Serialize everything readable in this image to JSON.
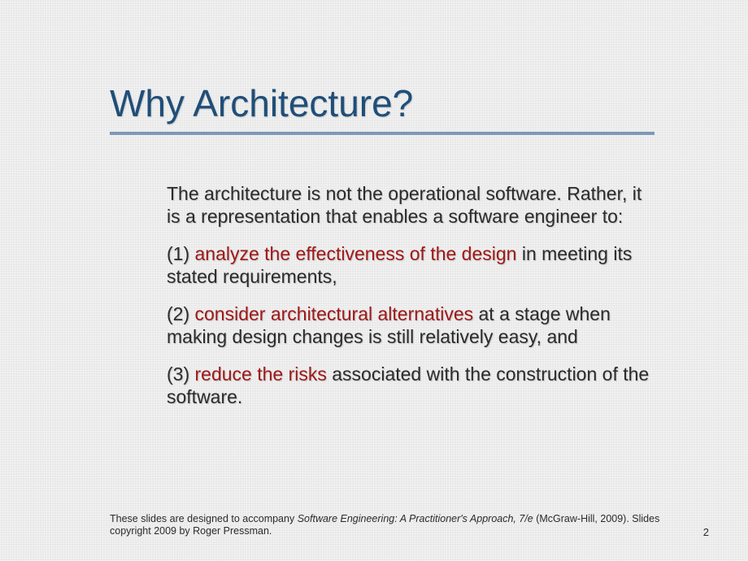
{
  "slide": {
    "title": "Why Architecture?",
    "intro": "The architecture is not the operational software. Rather, it is a representation that enables a software engineer to:",
    "points": [
      {
        "num": "(1) ",
        "red": "analyze the effectiveness of the design",
        "rest": " in meeting its stated requirements,"
      },
      {
        "num": "(2) ",
        "red": "consider architectural alternatives",
        "rest": " at a stage when making design changes is still relatively easy, and"
      },
      {
        "num": "(3) ",
        "red": "reduce the risks",
        "rest": " associated with the construction of the software."
      }
    ],
    "footer": {
      "line1_a": "These slides are designed to accompany ",
      "line1_italic": "Software Engineering: A Practitioner's Approach, 7/e",
      "line2": " (McGraw-Hill, 2009). Slides copyright 2009 by Roger Pressman."
    },
    "page_number": "2",
    "colors": {
      "title": "#1f4e79",
      "underline": "#7d99b8",
      "body_text": "#2b2b2b",
      "emphasis": "#a01818",
      "background": "#e8e8e8"
    }
  }
}
